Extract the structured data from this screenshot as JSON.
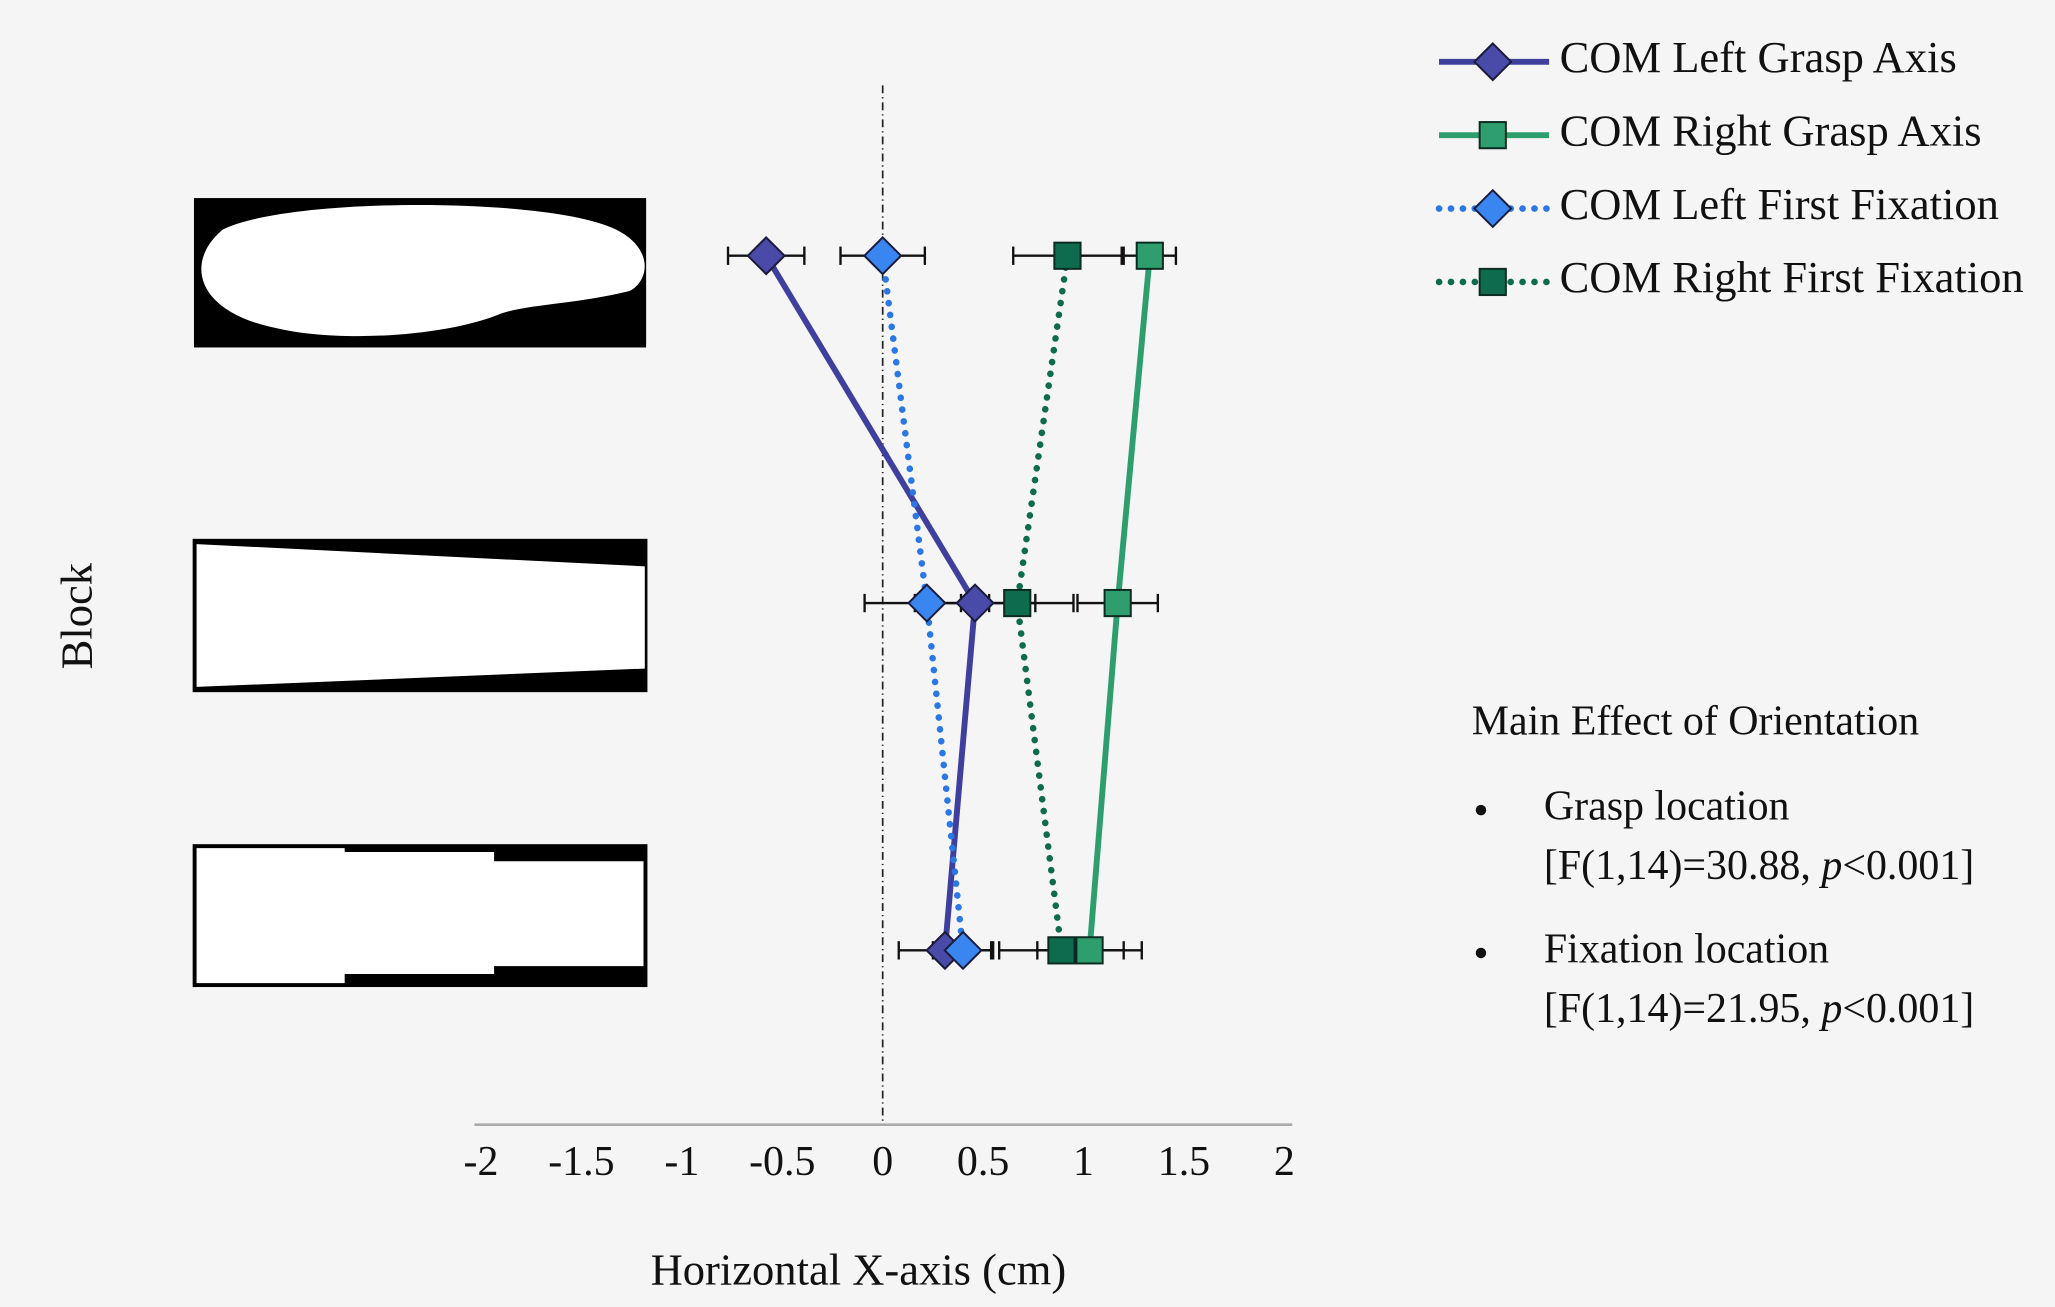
{
  "chart_data": {
    "type": "line",
    "orientation": "horizontal",
    "x_label": "Horizontal X-axis (cm)",
    "y_label": "Block",
    "categories": [
      null,
      null,
      null
    ],
    "xlim": [
      -2,
      2
    ],
    "xticks": [
      -2,
      -1.5,
      -1,
      -0.5,
      0,
      0.5,
      1,
      1.5,
      2
    ],
    "zero_line": true,
    "series": [
      {
        "name": "COM Left Grasp Axis",
        "color": "#3f3f9e",
        "marker_color": "#4a4aa8",
        "marker": "diamond",
        "dash": false,
        "values": [
          -0.58,
          0.46,
          0.31
        ],
        "errors": [
          0.19,
          0.3,
          0.23
        ]
      },
      {
        "name": "COM Right Grasp Axis",
        "color": "#2e9e6e",
        "marker_color": "#2e9e6e",
        "marker": "square",
        "dash": false,
        "values": [
          1.33,
          1.17,
          1.03
        ],
        "errors": [
          0.13,
          0.2,
          0.26
        ]
      },
      {
        "name": "COM Left First Fixation",
        "color": "#2b78e4",
        "marker_color": "#3a86f0",
        "marker": "diamond",
        "dash": true,
        "values": [
          0,
          0.22,
          0.4
        ],
        "errors": [
          0.21,
          0.31,
          0.15
        ]
      },
      {
        "name": "COM Right First Fixation",
        "color": "#0e6b4e",
        "marker_color": "#0e6b4e",
        "marker": "square",
        "dash": true,
        "values": [
          0.92,
          0.67,
          0.89
        ],
        "errors": [
          0.27,
          0.28,
          0.31
        ]
      }
    ],
    "annotation": {
      "title": "Main Effect of Orientation",
      "items": [
        {
          "label": "Grasp location",
          "stat": [
            "[F(1,14)=30.88, ",
            "p",
            "<0.001]"
          ]
        },
        {
          "label": "Fixation location",
          "stat": [
            "[F(1,14)=21.95, ",
            "p",
            "<0.001]"
          ]
        }
      ]
    }
  }
}
